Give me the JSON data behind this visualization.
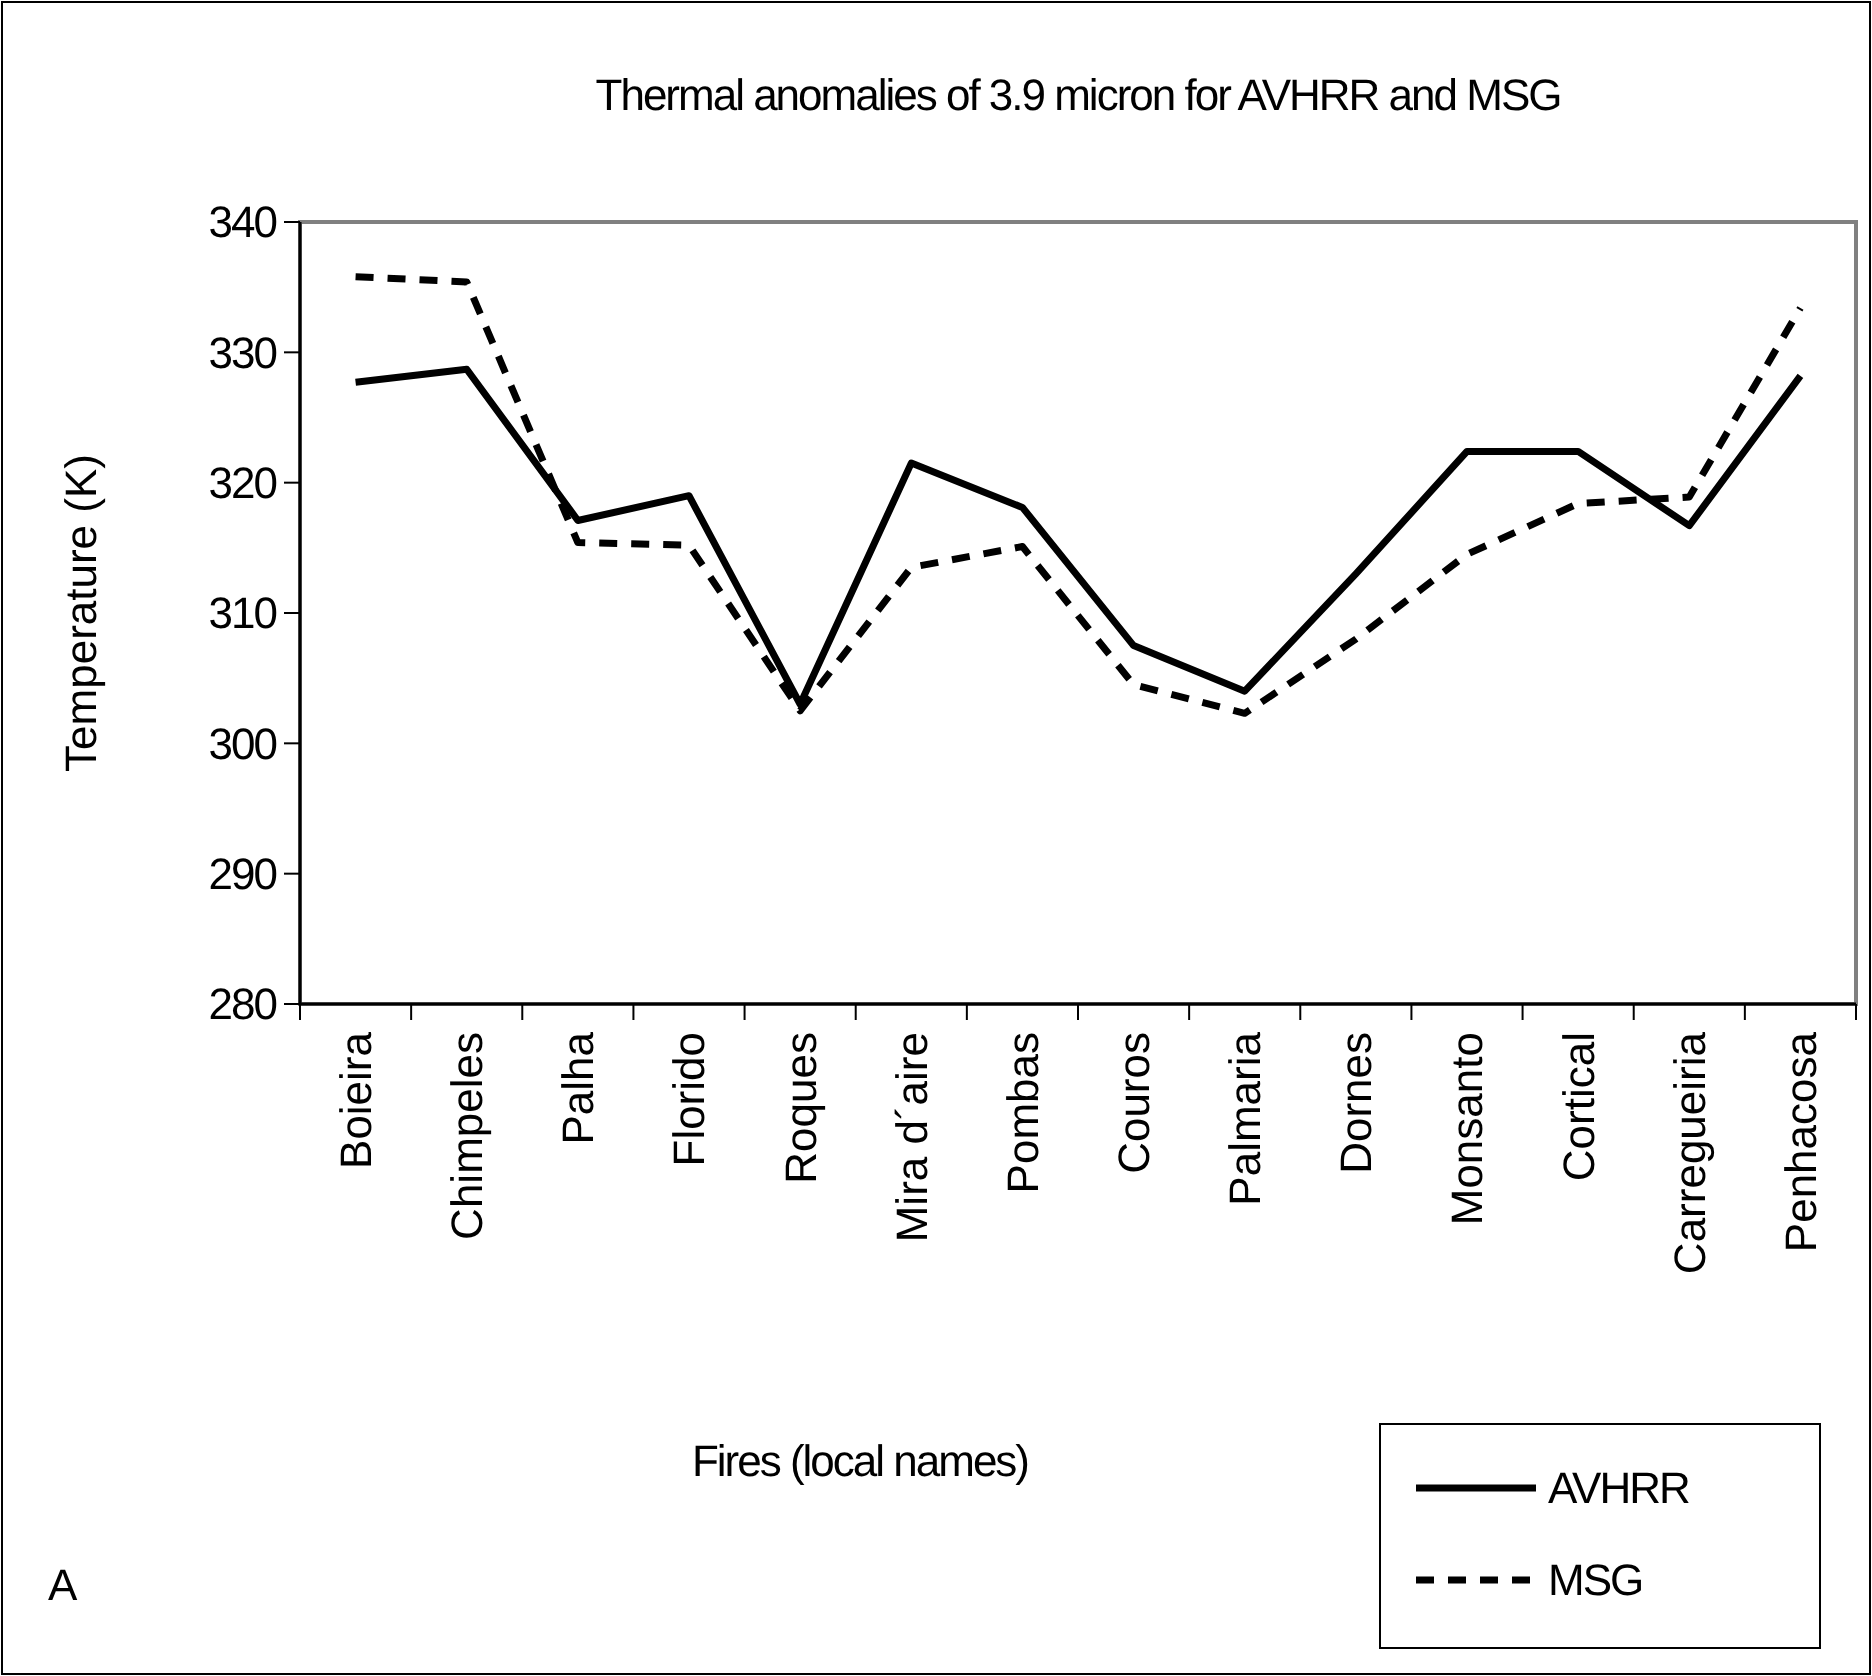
{
  "chart_data": {
    "type": "line",
    "title": "Thermal anomalies of 3.9 micron for AVHRR and MSG",
    "xlabel": "Fires (local names)",
    "ylabel": "Temperature (K)",
    "categories": [
      "Boieira",
      "Chimpeles",
      "Palha",
      "Florido",
      "Roques",
      "Mira d´aire",
      "Pombas",
      "Couros",
      "Palmaria",
      "Dornes",
      "Monsanto",
      "Cortical",
      "Carregueiria",
      "Penhacosa"
    ],
    "series": [
      {
        "name": "AVHRR",
        "color": "#000000",
        "line_style": "solid",
        "values": [
          327.7,
          328.7,
          317.1,
          319,
          303,
          321.5,
          318.1,
          307.5,
          304,
          313,
          322.4,
          322.4,
          316.7,
          328.2
        ]
      },
      {
        "name": "MSG",
        "color": "#000000",
        "line_style": "dashed",
        "values": [
          335.8,
          335.4,
          315.4,
          315.2,
          302.5,
          313.5,
          315.1,
          304.5,
          302.3,
          308,
          314.5,
          318.4,
          318.9,
          333.4
        ]
      }
    ],
    "ylim": [
      280,
      340
    ],
    "yticks": [
      280,
      290,
      300,
      310,
      320,
      330,
      340
    ],
    "grid": false,
    "legend": "bottom right",
    "marker": "none",
    "annotations": [
      "A"
    ]
  }
}
